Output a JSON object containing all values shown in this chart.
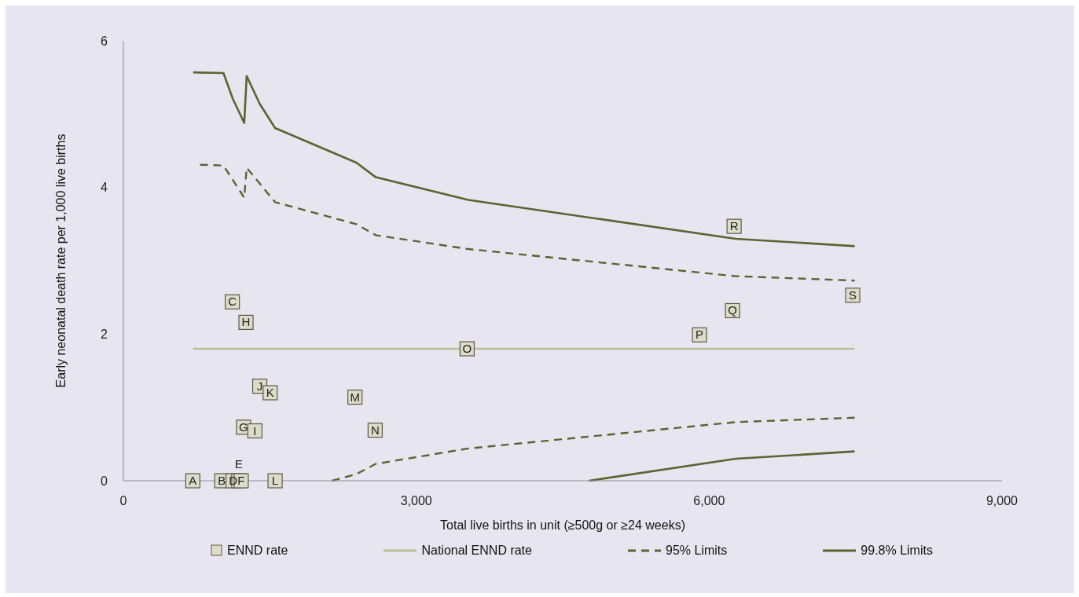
{
  "chart_data": {
    "type": "scatter",
    "xlabel": "Total live births in unit (≥500g or ≥24 weeks)",
    "ylabel": "Early neonatal death rate per 1,000  live births",
    "xlim": [
      0,
      9000
    ],
    "xticks": [
      0,
      {
        "value": 3000,
        "label": "3,000"
      },
      {
        "value": 6000,
        "label": "6,000"
      },
      {
        "value": 9000,
        "label": "9,000"
      }
    ],
    "ylim": [
      0,
      6
    ],
    "yticks": [
      0,
      2,
      4,
      6
    ],
    "grid": false,
    "legend": "bottom",
    "series": [
      {
        "name": "ENND rate",
        "marker": "square",
        "color": "#dcdcc8",
        "x": [
          711,
          1008,
          1116,
          1124,
          1182,
          1207,
          1231,
          1256,
          1347,
          1397,
          1504,
          1554,
          2372,
          2579,
          3521,
          5901,
          6240,
          6256,
          7471
        ],
        "values": [
          0,
          0,
          2.44,
          0,
          0,
          0,
          0.73,
          2.16,
          0.68,
          1.29,
          1.2,
          0,
          1.14,
          0.69,
          1.8,
          1.99,
          2.32,
          3.47,
          2.53
        ],
        "value_labels": [
          "A",
          "B",
          "C",
          "D",
          "E",
          "F",
          "G",
          "H",
          "I",
          "J",
          "K",
          "L",
          "M",
          "N",
          "O",
          "P",
          "Q",
          "R",
          "S"
        ]
      },
      {
        "name": "National ENND  rate",
        "type": "line",
        "line_style": "solid",
        "color": "#b8c196",
        "x": [
          715,
          7491
        ],
        "values": [
          1.8,
          1.8
        ]
      },
      {
        "name": "95% Limits",
        "type": "line",
        "line_style": "dashed",
        "color": "#5b6430",
        "x": [
          785,
          1025,
          1238,
          1263,
          1554,
          2386,
          2585,
          3534,
          6272,
          7491
        ],
        "values": [
          4.31,
          4.3,
          3.86,
          4.27,
          3.8,
          3.5,
          3.35,
          3.16,
          2.79,
          2.73
        ]
      },
      {
        "type": "line",
        "line_style": "dashed",
        "color": "#5b6430",
        "x": [
          2138,
          2386,
          2585,
          3534,
          6272,
          7491
        ],
        "values": [
          0,
          0.09,
          0.23,
          0.44,
          0.8,
          0.86
        ]
      },
      {
        "name": "99.8% Limits",
        "type": "line",
        "line_style": "solid",
        "color": "#5b6430",
        "x": [
          715,
          1025,
          1121,
          1238,
          1263,
          1397,
          1554,
          2386,
          2585,
          3534,
          6272,
          7491
        ],
        "values": [
          5.57,
          5.56,
          5.21,
          4.88,
          5.52,
          5.14,
          4.81,
          4.34,
          4.14,
          3.83,
          3.3,
          3.2
        ]
      },
      {
        "type": "line",
        "line_style": "solid",
        "color": "#5b6430",
        "x": [
          4770,
          6272,
          7491
        ],
        "values": [
          0,
          0.3,
          0.4
        ]
      }
    ]
  }
}
